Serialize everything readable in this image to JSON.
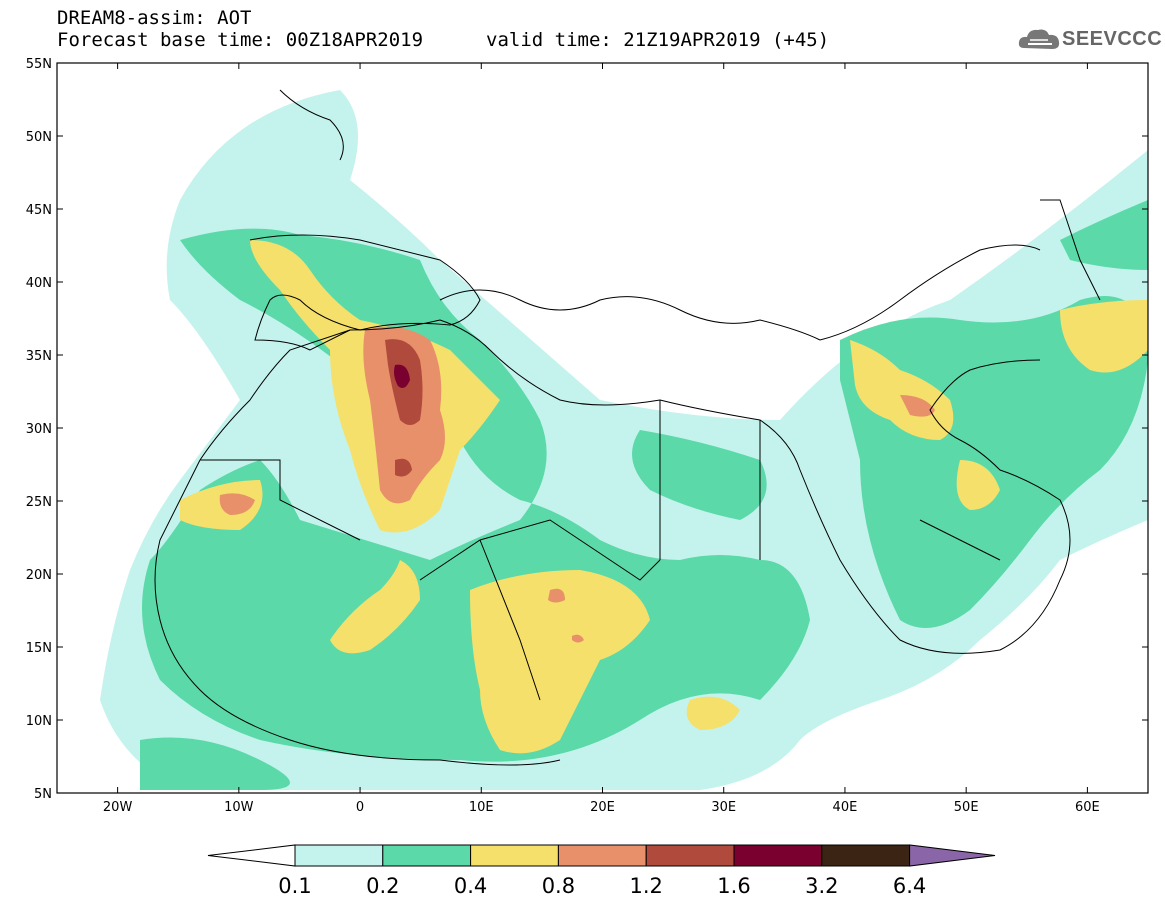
{
  "header": {
    "title": "DREAM8-assim: AOT",
    "base_time": "Forecast base time: 00Z18APR2019",
    "valid_time": "valid time: 21Z19APR2019 (+45)",
    "logo": "SEEVCCC"
  },
  "map": {
    "lon_range": [
      -25,
      65
    ],
    "lat_range": [
      5,
      55
    ],
    "lat_labels": [
      "55N",
      "50N",
      "45N",
      "40N",
      "35N",
      "30N",
      "25N",
      "20N",
      "15N",
      "10N",
      "5N"
    ],
    "lon_labels": [
      "20W",
      "10W",
      "0",
      "10E",
      "20E",
      "30E",
      "40E",
      "50E",
      "60E"
    ]
  },
  "colorbar": {
    "labels": [
      "0.1",
      "0.2",
      "0.4",
      "0.8",
      "1.2",
      "1.6",
      "3.2",
      "6.4"
    ],
    "colors": [
      "#ffffff",
      "#c4f3ed",
      "#5bd9a9",
      "#f4e06b",
      "#e8906a",
      "#b04a3c",
      "#7a0030",
      "#3c2414",
      "#8a66a8"
    ]
  }
}
